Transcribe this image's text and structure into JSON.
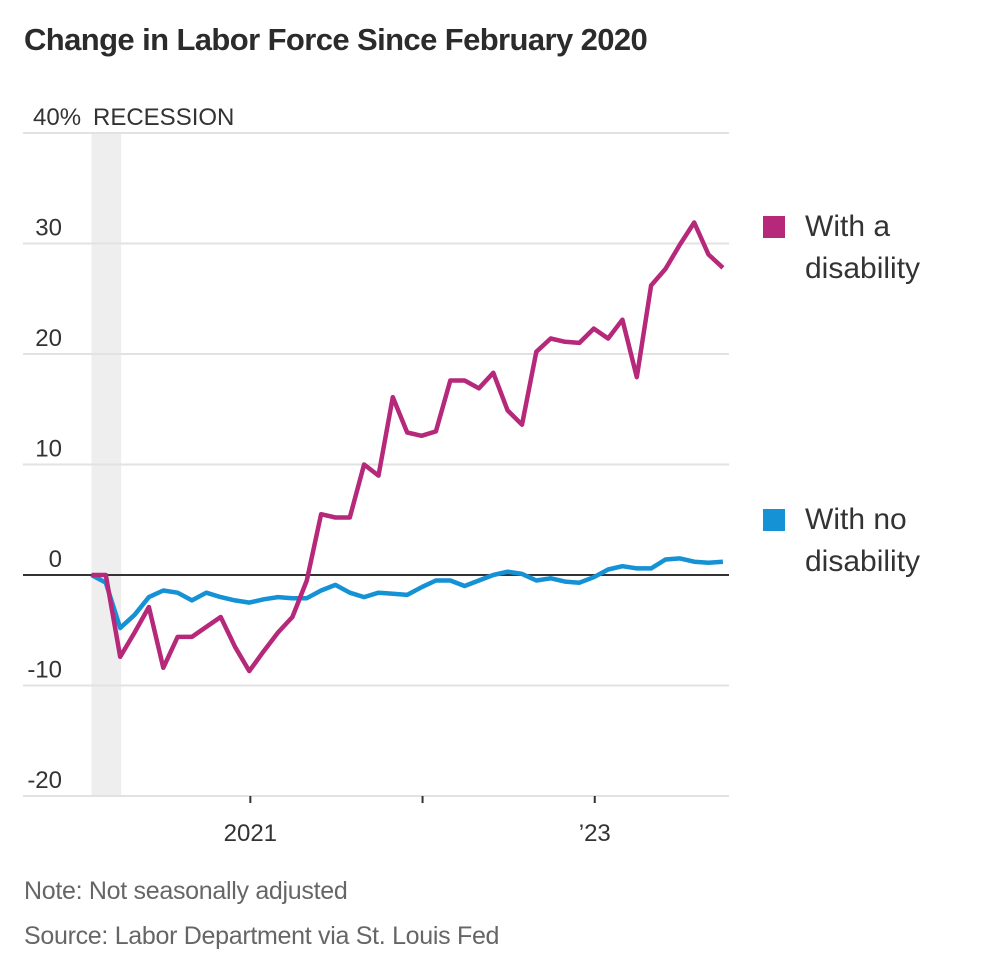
{
  "title": "Change in Labor Force Since February 2020",
  "footer": {
    "note": "Note: Not seasonally adjusted",
    "source": "Source: Labor Department via St. Louis Fed"
  },
  "colors": {
    "with_disability": "#b5287a",
    "no_disability": "#1591d6",
    "recession": "#eeeeee",
    "grid": "#e2e2e2",
    "zero_line": "#333333"
  },
  "chart_data": {
    "type": "line",
    "title": "Change in Labor Force Since February 2020",
    "xlabel": "",
    "ylabel": "",
    "y_unit_label": "40%",
    "ylim": [
      -20,
      40
    ],
    "yticks": [
      {
        "value": 40,
        "label": "40%"
      },
      {
        "value": 30,
        "label": "30"
      },
      {
        "value": 20,
        "label": "20"
      },
      {
        "value": 10,
        "label": "10"
      },
      {
        "value": 0,
        "label": "0"
      },
      {
        "value": -10,
        "label": "-10"
      },
      {
        "value": -20,
        "label": "-20"
      }
    ],
    "x_start": "2020-02",
    "x_end": "2023-10",
    "xticks": [
      {
        "month_index": 11,
        "label": "2021"
      },
      {
        "month_index": 23,
        "label": ""
      },
      {
        "month_index": 35,
        "label": "’23"
      }
    ],
    "grid": true,
    "legend_position": "right",
    "annotations": [
      {
        "type": "shaded_band",
        "label": "RECESSION",
        "from_month_index": 0,
        "to_month_index": 2
      }
    ],
    "x": [
      "2020-02",
      "2020-03",
      "2020-04",
      "2020-05",
      "2020-06",
      "2020-07",
      "2020-08",
      "2020-09",
      "2020-10",
      "2020-11",
      "2020-12",
      "2021-01",
      "2021-02",
      "2021-03",
      "2021-04",
      "2021-05",
      "2021-06",
      "2021-07",
      "2021-08",
      "2021-09",
      "2021-10",
      "2021-11",
      "2021-12",
      "2022-01",
      "2022-02",
      "2022-03",
      "2022-04",
      "2022-05",
      "2022-06",
      "2022-07",
      "2022-08",
      "2022-09",
      "2022-10",
      "2022-11",
      "2022-12",
      "2023-01",
      "2023-02",
      "2023-03",
      "2023-04",
      "2023-05",
      "2023-06",
      "2023-07",
      "2023-08",
      "2023-09",
      "2023-10"
    ],
    "series": [
      {
        "name": "With a disability",
        "legend_lines": [
          "With a",
          "disability"
        ],
        "color": "#b5287a",
        "values": [
          0,
          0,
          -7.4,
          -5.2,
          -2.9,
          -8.4,
          -5.6,
          -5.6,
          -4.7,
          -3.8,
          -6.5,
          -8.7,
          -6.9,
          -5.2,
          -3.8,
          -0.5,
          5.5,
          5.2,
          5.2,
          10.0,
          9.0,
          16.1,
          12.9,
          12.6,
          13.0,
          17.6,
          17.6,
          16.9,
          18.3,
          14.9,
          13.6,
          20.2,
          21.4,
          21.1,
          21.0,
          22.3,
          21.4,
          23.1,
          17.9,
          26.2,
          27.7,
          29.9,
          31.9,
          29.0,
          27.8
        ]
      },
      {
        "name": "With no disability",
        "legend_lines": [
          "With no",
          "disability"
        ],
        "color": "#1591d6",
        "values": [
          0,
          -0.7,
          -4.8,
          -3.6,
          -2.0,
          -1.4,
          -1.6,
          -2.3,
          -1.6,
          -2.0,
          -2.3,
          -2.5,
          -2.2,
          -2.0,
          -2.1,
          -2.1,
          -1.4,
          -0.9,
          -1.6,
          -2.0,
          -1.6,
          -1.7,
          -1.8,
          -1.1,
          -0.5,
          -0.5,
          -1.0,
          -0.5,
          0.0,
          0.3,
          0.1,
          -0.5,
          -0.3,
          -0.6,
          -0.7,
          -0.2,
          0.5,
          0.8,
          0.6,
          0.6,
          1.4,
          1.5,
          1.2,
          1.1,
          1.2
        ]
      }
    ]
  }
}
